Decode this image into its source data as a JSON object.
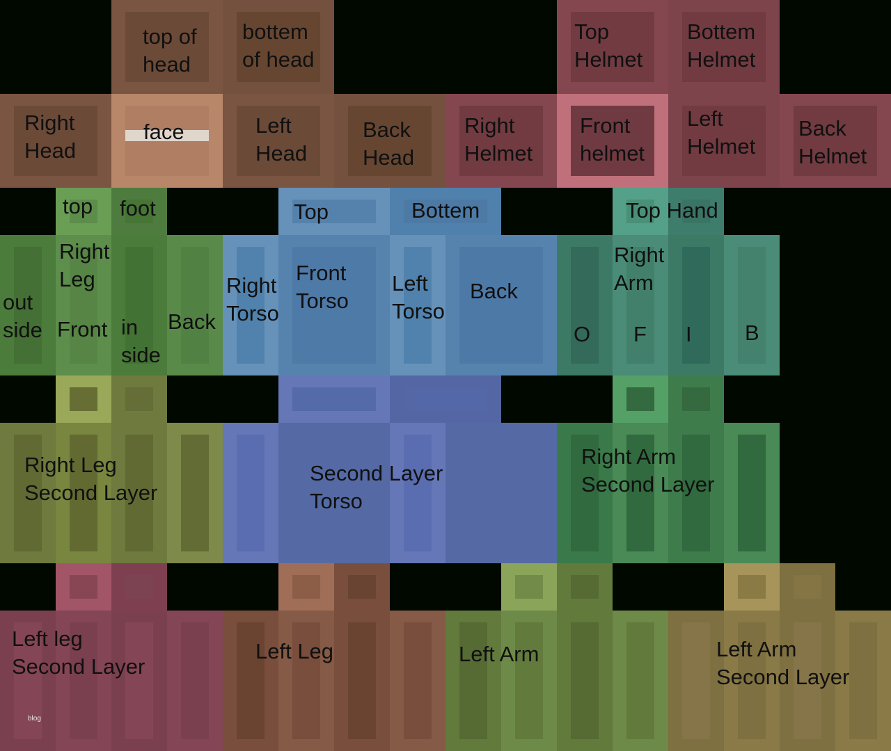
{
  "background_color": "#000800",
  "labels": {
    "top_of_head": "top of\nhead",
    "bottom_of_head": "bottem\nof head",
    "right_head": "Right\nHead",
    "face": "face",
    "left_head": "Left\nHead",
    "back_head": "Back\nHead",
    "top_helmet": "Top\nHelmet",
    "bottom_helmet": "Bottem\nHelmet",
    "right_helmet": "Right\nHelmet",
    "front_helmet": "Front\nhelmet",
    "left_helmet": "Left\nHelmet",
    "back_helmet": "Back\nHelmet",
    "leg_top": "top",
    "leg_foot": "foot",
    "torso_top": "Top",
    "torso_bottom": "Bottem",
    "arm_top_hand": "Top Hand",
    "right_leg": "Right\nLeg",
    "leg_outside": "out\nside",
    "leg_front": "Front",
    "leg_inside": "in\nside",
    "leg_back": "Back",
    "right_torso": "Right\nTorso",
    "front_torso": "Front\nTorso",
    "left_torso": "Left\nTorso",
    "back_torso": "Back",
    "right_arm": "Right\nArm",
    "arm_o": "O",
    "arm_f": "F",
    "arm_i": "I",
    "arm_b": "B",
    "right_leg_second": "Right Leg\nSecond Layer",
    "torso_second": "Second Layer\nTorso",
    "right_arm_second": "Right Arm\nSecond Layer",
    "left_leg_second": "Left leg\nSecond Layer",
    "left_leg": "Left Leg",
    "left_arm": "Left Arm",
    "left_arm_second": "Left Arm\nSecond Layer",
    "watermark": "blog"
  },
  "region_colors": {
    "head": "#7a5542",
    "face": "#b8876a",
    "helmet": "#844750",
    "front_helmet": "#c0707a",
    "right_leg": "#5a8a49",
    "torso": "#6692ba",
    "right_arm": "#4a8c77",
    "right_leg_second": "#7e8a4a",
    "torso_second": "#6677b8",
    "right_arm_second": "#4a8a56",
    "left_leg_second": "#844656",
    "left_leg": "#855a46",
    "left_arm": "#6e8a48",
    "left_arm_second": "#8a7a48"
  }
}
